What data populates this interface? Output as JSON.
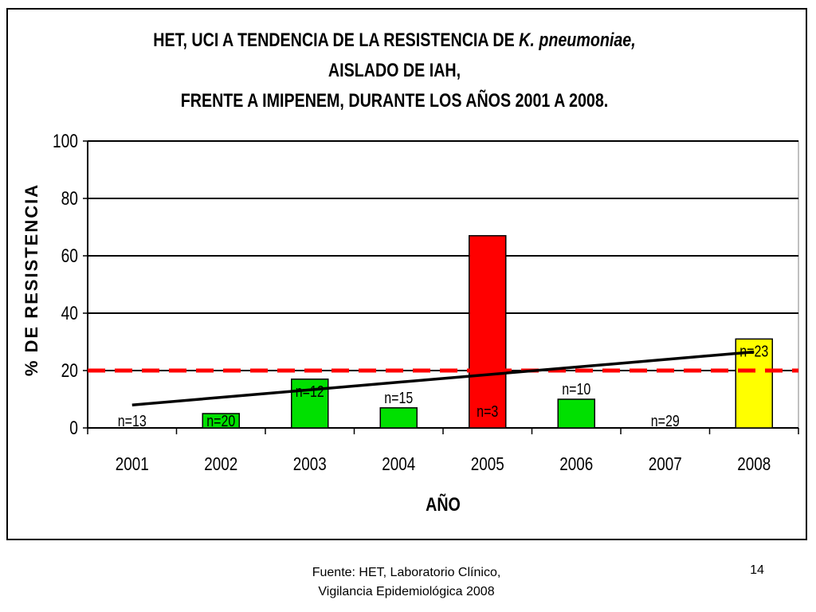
{
  "slide": {
    "title_part1": "HET, UCI A TENDENCIA DE LA RESISTENCIA DE",
    "title_italic": "K. pneumoniae,",
    "title_part2": "AISLADO DE IAH,",
    "title_line2": "FRENTE A IMIPENEM, DURANTE LOS AÑOS 2001 A 2008.",
    "source_line1": "Fuente: HET, Laboratorio Clínico,",
    "source_line2": "Vigilancia Epidemiológica 2008",
    "page_number": "14"
  },
  "chart_data": {
    "type": "bar",
    "title": "HET, UCI A TENDENCIA DE LA RESISTENCIA DE K. pneumoniae, AISLADO DE IAH, FRENTE A IMIPENEM, DURANTE LOS AÑOS 2001 A 2008.",
    "xlabel": "AÑO",
    "ylabel": "% DE RESISTENCIA",
    "categories": [
      "2001",
      "2002",
      "2003",
      "2004",
      "2005",
      "2006",
      "2007",
      "2008"
    ],
    "values": [
      0,
      5,
      17,
      7,
      67,
      10,
      0,
      31
    ],
    "bar_colors": [
      "#00e000",
      "#00e000",
      "#00e000",
      "#00e000",
      "#ff0000",
      "#00e000",
      "#00e000",
      "#ffff00"
    ],
    "annotations": [
      "n=13",
      "n=20",
      "n=12",
      "n=15",
      "n=3",
      "n=10",
      "n=29",
      "n=23"
    ],
    "ylim": [
      0,
      100
    ],
    "yticks": [
      0,
      20,
      40,
      60,
      80,
      100
    ],
    "grid": true,
    "threshold": {
      "value": 20,
      "color": "#ff0000",
      "style": "dashed"
    },
    "trendline": {
      "x": [
        "2001",
        "2008"
      ],
      "y": [
        8,
        26.5
      ],
      "color": "#000000"
    }
  }
}
